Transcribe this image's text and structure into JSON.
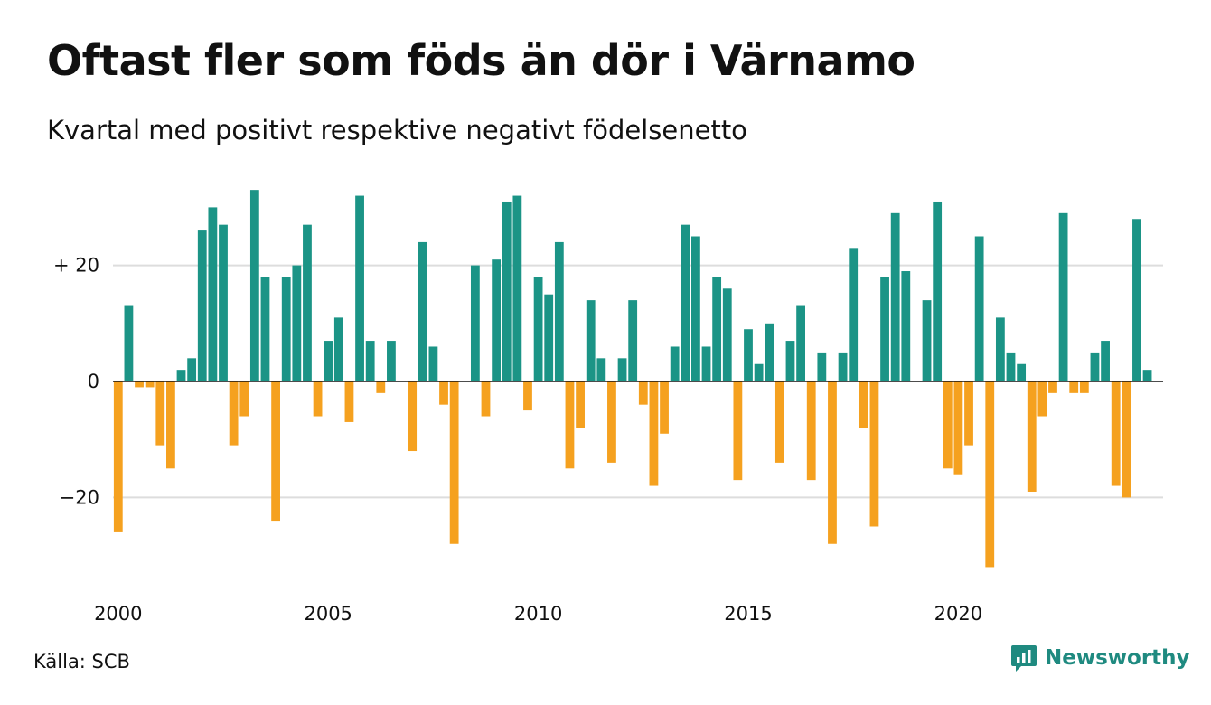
{
  "title": "Oftast fler som föds än dör i Värnamo",
  "subtitle": "Kvartal med positivt respektive negativt födelsenetto",
  "source": "Källa: SCB",
  "brand": {
    "name": "Newsworthy",
    "icon": "newsworthy-logo-icon",
    "color": "#1f8a80"
  },
  "chart_data": {
    "type": "bar",
    "x_start": "2000 Q1",
    "x_ticks": [
      {
        "label": "2000",
        "year": 2000
      },
      {
        "label": "2005",
        "year": 2005
      },
      {
        "label": "2010",
        "year": 2010
      },
      {
        "label": "2015",
        "year": 2015
      },
      {
        "label": "2020",
        "year": 2020
      }
    ],
    "y_ticks": [
      {
        "label": "+ 20",
        "value": 20
      },
      {
        "label": "0",
        "value": 0
      },
      {
        "label": "−20",
        "value": -20
      }
    ],
    "ylim": [
      -35,
      35
    ],
    "grid": true,
    "colors": {
      "positive": "#1b9486",
      "negative": "#f5a11f"
    },
    "values": [
      -26,
      13,
      -1,
      -1,
      -11,
      -15,
      2,
      4,
      26,
      30,
      27,
      -11,
      -6,
      33,
      18,
      -24,
      18,
      20,
      27,
      -6,
      7,
      11,
      -7,
      32,
      7,
      -2,
      7,
      0,
      -12,
      24,
      6,
      -4,
      -28,
      0,
      20,
      -6,
      21,
      31,
      32,
      -5,
      18,
      15,
      24,
      -15,
      -8,
      14,
      4,
      -14,
      4,
      14,
      -4,
      -18,
      -9,
      6,
      27,
      25,
      6,
      18,
      16,
      -17,
      9,
      3,
      10,
      -14,
      7,
      13,
      -17,
      5,
      -28,
      5,
      23,
      -8,
      -25,
      18,
      29,
      19,
      0,
      14,
      31,
      -15,
      -16,
      -11,
      25,
      -32,
      11,
      5,
      3,
      -19,
      -6,
      -2,
      29,
      -2,
      -2,
      5,
      7,
      -18,
      -20,
      28,
      2
    ]
  }
}
